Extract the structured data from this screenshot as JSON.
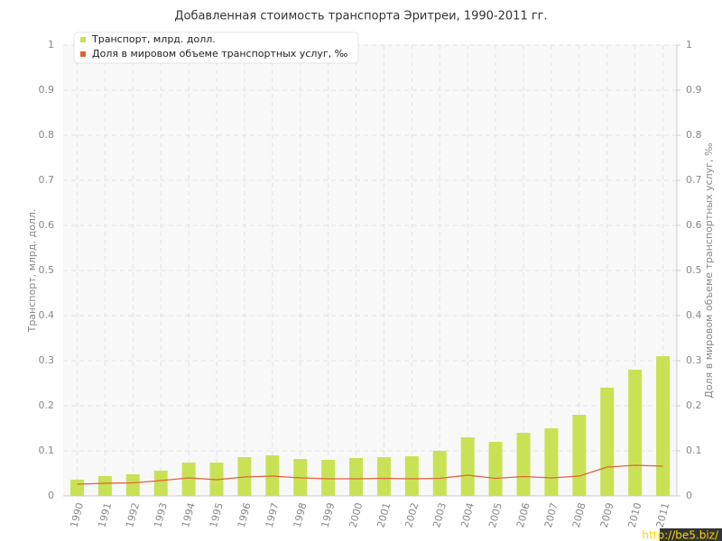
{
  "chart_data": {
    "type": "bar_line",
    "title": "Добавленная стоимость транспорта Эритреи, 1990-2011 гг.",
    "y_label": "Транспорт, млрд. долл.",
    "y2_label": "Доля в мировом объеме транспортных услуг, ‰",
    "watermark": "http://be5.biz/",
    "categories": [
      "1990",
      "1991",
      "1992",
      "1993",
      "1994",
      "1995",
      "1996",
      "1997",
      "1998",
      "1999",
      "2000",
      "2001",
      "2002",
      "2003",
      "2004",
      "2005",
      "2006",
      "2007",
      "2008",
      "2009",
      "2010",
      "2011"
    ],
    "series": [
      {
        "name": "Транспорт, млрд. долл.",
        "color": "#c9e255",
        "kind": "bar",
        "values": [
          0.036,
          0.044,
          0.048,
          0.056,
          0.074,
          0.074,
          0.086,
          0.09,
          0.082,
          0.08,
          0.084,
          0.086,
          0.088,
          0.1,
          0.13,
          0.12,
          0.14,
          0.15,
          0.18,
          0.24,
          0.28,
          0.31
        ]
      },
      {
        "name": "Доля в мировом объеме транспортных услуг, ‰",
        "color": "#e0643a",
        "kind": "line",
        "axis": "y2",
        "values": [
          0.026,
          0.028,
          0.029,
          0.034,
          0.04,
          0.036,
          0.042,
          0.044,
          0.04,
          0.038,
          0.038,
          0.039,
          0.038,
          0.039,
          0.046,
          0.039,
          0.043,
          0.04,
          0.044,
          0.064,
          0.068,
          0.066
        ]
      }
    ],
    "ylim": [
      0,
      1
    ],
    "yticks": [
      0,
      0.1,
      0.2,
      0.3,
      0.4,
      0.5,
      0.6,
      0.7,
      0.8,
      0.9,
      1
    ],
    "y2lim": [
      0,
      1
    ],
    "y2ticks": [
      0,
      0.1,
      0.2,
      0.3,
      0.4,
      0.5,
      0.6,
      0.7,
      0.8,
      0.9,
      1
    ],
    "grid": true
  }
}
